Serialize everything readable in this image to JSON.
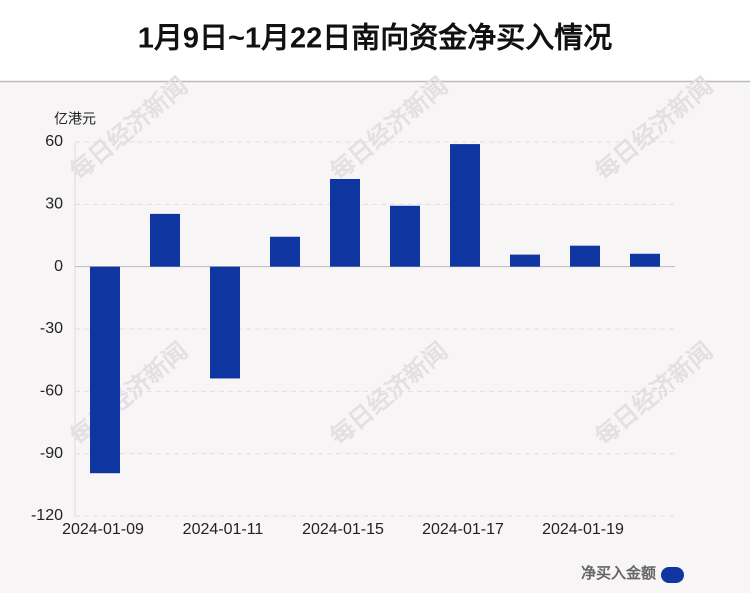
{
  "chart_data": {
    "type": "bar",
    "title": "1月9日~1月22日南向资金净买入情况",
    "y_unit": "亿港元",
    "categories": [
      "2024-01-09",
      null,
      "2024-01-11",
      null,
      "2024-01-15",
      null,
      "2024-01-17",
      null,
      "2024-01-19",
      null
    ],
    "series": [
      {
        "name": "净买入金额",
        "color": "#0f35a0",
        "values": [
          -99.4,
          25.4,
          -53.8,
          14.4,
          42.2,
          29.3,
          59.0,
          5.8,
          10.1,
          6.2
        ]
      }
    ],
    "ylim": [
      -120,
      60
    ],
    "yticks": [
      -120,
      -90,
      -60,
      -30,
      0,
      30,
      60
    ],
    "grid": true,
    "watermark": "每日经济新闻"
  }
}
